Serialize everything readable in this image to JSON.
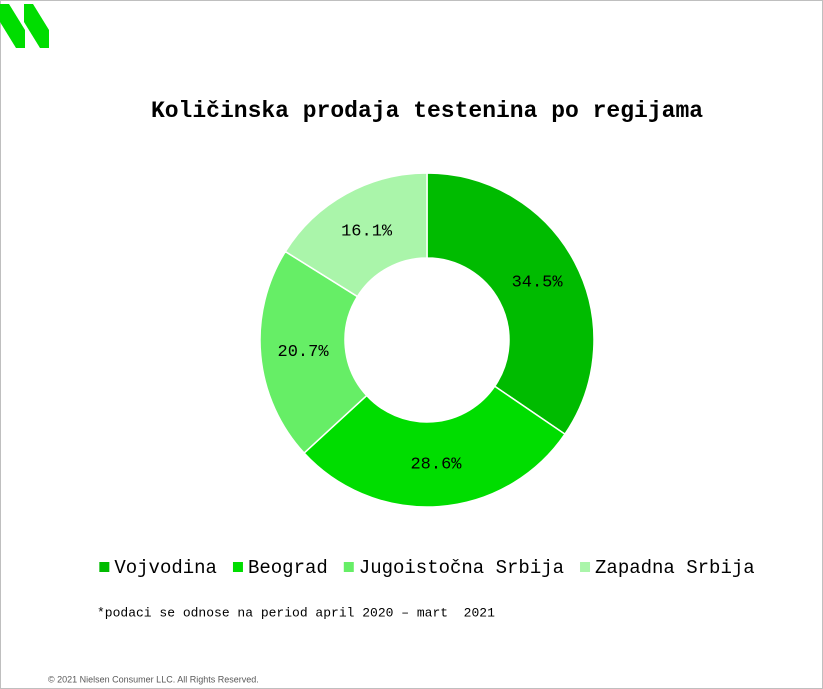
{
  "chart_data": {
    "type": "donut",
    "title": "Količinska prodaja testenina po regijama",
    "categories": [
      "Vojvodina",
      "Beograd",
      "Jugoistočna Srbija",
      "Zapadna Srbija"
    ],
    "values": [
      34.5,
      28.6,
      20.7,
      16.1
    ],
    "value_labels": [
      "34.5%",
      "28.6%",
      "20.7%",
      "16.1%"
    ],
    "colors": [
      "#00bb00",
      "#00dd00",
      "#66ee66",
      "#aaf5aa"
    ],
    "legend": "bottom",
    "footnote": "*podaci se odnose na period april 2020 – mart  2021",
    "copyright": "© 2021 Nielsen Consumer LLC. All Rights Reserved."
  }
}
